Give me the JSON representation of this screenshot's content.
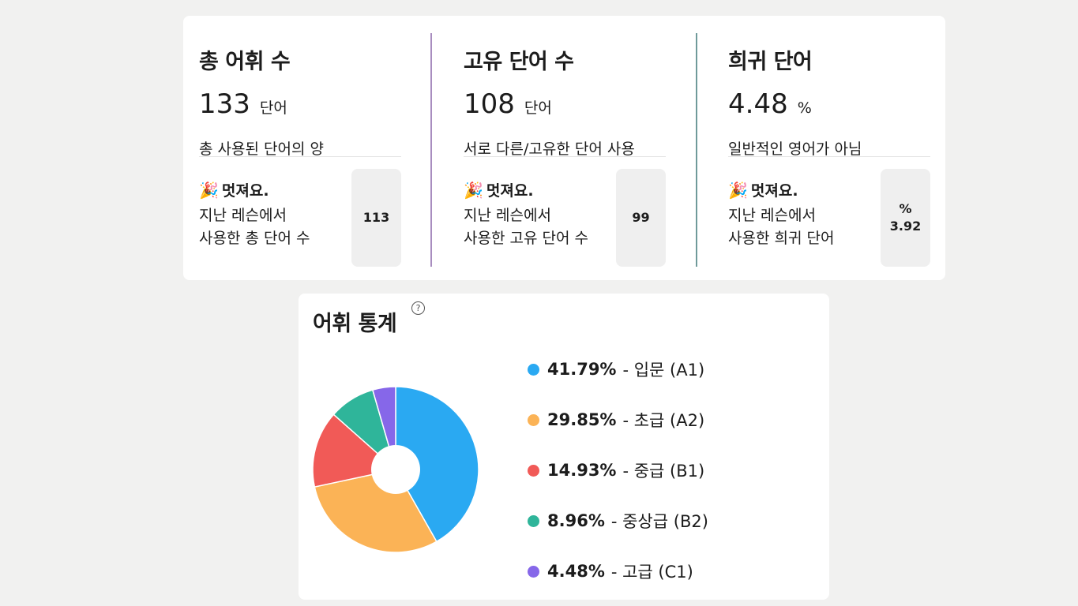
{
  "stats": [
    {
      "title": "총 어휘 수",
      "value": "133",
      "unit": "단어",
      "desc": "총 사용된 단어의 양",
      "compare_title": "멋져요.",
      "compare_line1": "지난 레슨에서",
      "compare_line2": "사용한 총 단어 수",
      "compare_top": "",
      "compare_value": "113",
      "divider_color": "#a88dbf"
    },
    {
      "title": "고유 단어 수",
      "value": "108",
      "unit": "단어",
      "desc": "서로 다른/고유한 단어 사용",
      "compare_title": "멋져요.",
      "compare_line1": "지난 레슨에서",
      "compare_line2": "사용한 고유 단어 수",
      "compare_top": "",
      "compare_value": "99",
      "divider_color": "#6f9a9a"
    },
    {
      "title": "희귀 단어",
      "value": "4.48",
      "unit": "%",
      "desc": "일반적인 영어가 아님",
      "compare_title": "멋져요.",
      "compare_line1": "지난 레슨에서",
      "compare_line2": "사용한 희귀 단어",
      "compare_top": "%",
      "compare_value": "3.92",
      "divider_color": ""
    }
  ],
  "vocab": {
    "title": "어휘 통계",
    "help_icon": "question-circle-icon"
  },
  "chart_data": {
    "type": "pie",
    "style": "donut",
    "values": [
      41.79,
      29.85,
      14.93,
      8.96,
      4.48
    ],
    "colors": [
      "#2aa9f2",
      "#fbb356",
      "#f15a57",
      "#2fb59a",
      "#8667e9"
    ],
    "legend": [
      {
        "pct": "41.79%",
        "label": "- 입문 (A1)"
      },
      {
        "pct": "29.85%",
        "label": "- 초급 (A2)"
      },
      {
        "pct": "14.93%",
        "label": "- 중급 (B1)"
      },
      {
        "pct": "8.96%",
        "label": "- 중상급 (B2)"
      },
      {
        "pct": "4.48%",
        "label": "- 고급 (C1)"
      }
    ]
  }
}
